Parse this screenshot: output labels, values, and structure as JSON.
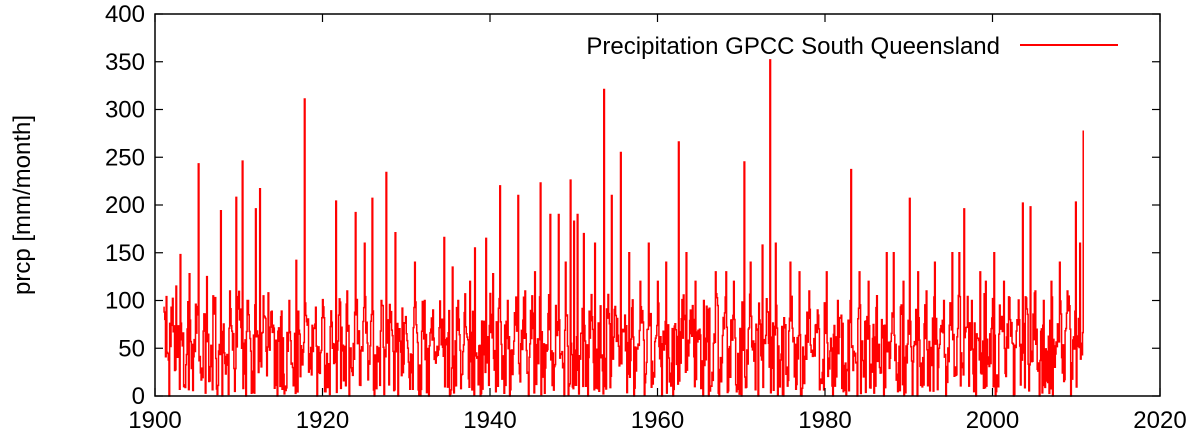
{
  "chart_data": {
    "type": "line",
    "title": "",
    "xlabel": "",
    "ylabel": "prcp [mm/month]",
    "xlim": [
      1900,
      2020
    ],
    "ylim": [
      0,
      400
    ],
    "xticks": [
      1900,
      1920,
      1940,
      1960,
      1980,
      2000,
      2020
    ],
    "yticks": [
      0,
      50,
      100,
      150,
      200,
      250,
      300,
      350,
      400
    ],
    "grid": false,
    "legend_position": "top-right",
    "series": [
      {
        "name": "Precipitation GPCC South Queensland",
        "color": "#ff0000",
        "start_year": 1901.0,
        "end_year": 2010.9,
        "baseline": 45,
        "peaks": [
          [
            1901.3,
            104
          ],
          [
            1902.5,
            115
          ],
          [
            1903.0,
            148
          ],
          [
            1904.1,
            128
          ],
          [
            1905.2,
            243
          ],
          [
            1906.2,
            125
          ],
          [
            1907.2,
            103
          ],
          [
            1907.8,
            194
          ],
          [
            1908.9,
            110
          ],
          [
            1909.7,
            208
          ],
          [
            1910.4,
            246
          ],
          [
            1911.1,
            100
          ],
          [
            1912.0,
            196
          ],
          [
            1912.5,
            217
          ],
          [
            1913.5,
            108
          ],
          [
            1915.0,
            83
          ],
          [
            1916.0,
            100
          ],
          [
            1916.8,
            142
          ],
          [
            1917.8,
            311
          ],
          [
            1919.2,
            93
          ],
          [
            1920.2,
            82
          ],
          [
            1921.6,
            204
          ],
          [
            1922.9,
            110
          ],
          [
            1923.9,
            192
          ],
          [
            1925.0,
            160
          ],
          [
            1925.9,
            207
          ],
          [
            1927.0,
            100
          ],
          [
            1927.6,
            234
          ],
          [
            1928.7,
            171
          ],
          [
            1929.5,
            92
          ],
          [
            1931.0,
            140
          ],
          [
            1932.2,
            100
          ],
          [
            1933.2,
            90
          ],
          [
            1934.5,
            166
          ],
          [
            1935.5,
            135
          ],
          [
            1936.2,
            100
          ],
          [
            1937.6,
            120
          ],
          [
            1938.2,
            155
          ],
          [
            1939.5,
            165
          ],
          [
            1940.3,
            128
          ],
          [
            1941.2,
            220
          ],
          [
            1942.1,
            100
          ],
          [
            1943.3,
            210
          ],
          [
            1944.2,
            110
          ],
          [
            1945.3,
            130
          ],
          [
            1946.0,
            223
          ],
          [
            1947.2,
            190
          ],
          [
            1948.2,
            190
          ],
          [
            1949.0,
            140
          ],
          [
            1949.6,
            226
          ],
          [
            1950.0,
            183
          ],
          [
            1950.4,
            190
          ],
          [
            1951.2,
            170
          ],
          [
            1952.5,
            160
          ],
          [
            1953.6,
            321
          ],
          [
            1954.5,
            210
          ],
          [
            1955.6,
            255
          ],
          [
            1956.6,
            150
          ],
          [
            1957.9,
            120
          ],
          [
            1958.9,
            160
          ],
          [
            1960.0,
            120
          ],
          [
            1961.0,
            140
          ],
          [
            1962.5,
            266
          ],
          [
            1963.4,
            150
          ],
          [
            1964.5,
            120
          ],
          [
            1965.5,
            100
          ],
          [
            1966.9,
            130
          ],
          [
            1968.2,
            130
          ],
          [
            1969.1,
            120
          ],
          [
            1970.3,
            245
          ],
          [
            1971.1,
            140
          ],
          [
            1972.5,
            158
          ],
          [
            1973.4,
            352
          ],
          [
            1974.1,
            160
          ],
          [
            1975.8,
            140
          ],
          [
            1976.9,
            130
          ],
          [
            1978.1,
            110
          ],
          [
            1979.1,
            90
          ],
          [
            1980.2,
            130
          ],
          [
            1981.5,
            100
          ],
          [
            1983.1,
            237
          ],
          [
            1984.1,
            130
          ],
          [
            1985.2,
            120
          ],
          [
            1986.2,
            105
          ],
          [
            1987.3,
            150
          ],
          [
            1988.2,
            150
          ],
          [
            1989.3,
            120
          ],
          [
            1990.1,
            207
          ],
          [
            1991.1,
            130
          ],
          [
            1992.1,
            110
          ],
          [
            1993.1,
            140
          ],
          [
            1994.2,
            100
          ],
          [
            1995.2,
            150
          ],
          [
            1996.0,
            150
          ],
          [
            1996.6,
            196
          ],
          [
            1997.5,
            100
          ],
          [
            1998.5,
            130
          ],
          [
            1999.2,
            120
          ],
          [
            2000.2,
            150
          ],
          [
            2001.3,
            120
          ],
          [
            2002.1,
            80
          ],
          [
            2003.6,
            202
          ],
          [
            2004.5,
            198
          ],
          [
            2005.1,
            110
          ],
          [
            2006.1,
            100
          ],
          [
            2007.0,
            120
          ],
          [
            2008.0,
            140
          ],
          [
            2008.9,
            110
          ],
          [
            2009.9,
            203
          ],
          [
            2010.4,
            160
          ],
          [
            2010.8,
            278
          ]
        ],
        "dips": [
          [
            1901.7,
            0
          ],
          [
            1908.0,
            0
          ],
          [
            1910.8,
            0
          ],
          [
            1914.6,
            0
          ],
          [
            1919.3,
            0
          ],
          [
            1923.2,
            0
          ],
          [
            1926.2,
            0
          ],
          [
            1929.0,
            0
          ],
          [
            1932.7,
            0
          ],
          [
            1935.2,
            0
          ],
          [
            1938.8,
            0
          ],
          [
            1942.3,
            0
          ],
          [
            1944.6,
            0
          ],
          [
            1948.8,
            0
          ],
          [
            1951.7,
            0
          ],
          [
            1957.2,
            0
          ],
          [
            1961.8,
            0
          ],
          [
            1965.4,
            0
          ],
          [
            1967.3,
            0
          ],
          [
            1970.0,
            0
          ],
          [
            1972.0,
            0
          ],
          [
            1975.0,
            0
          ],
          [
            1977.2,
            0
          ],
          [
            1980.9,
            0
          ],
          [
            1983.8,
            0
          ],
          [
            1987.0,
            0
          ],
          [
            1991.0,
            0
          ],
          [
            1994.4,
            0
          ],
          [
            1998.0,
            0
          ],
          [
            2000.3,
            0
          ],
          [
            2002.5,
            0
          ],
          [
            2005.6,
            0
          ],
          [
            2007.2,
            0
          ],
          [
            2009.3,
            0
          ]
        ]
      }
    ]
  }
}
